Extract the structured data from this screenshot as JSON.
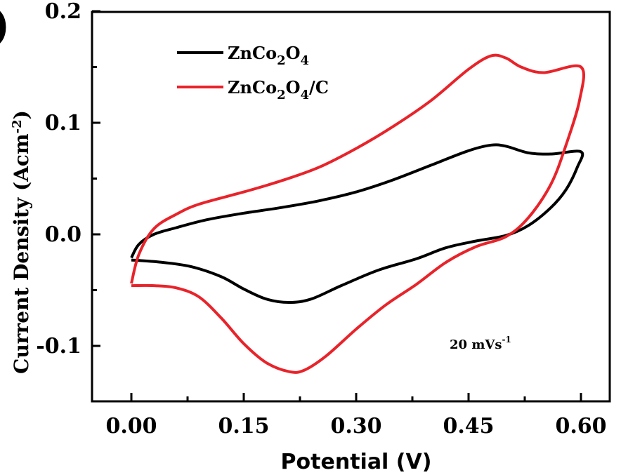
{
  "chart_data": {
    "type": "line",
    "panel_label": ")",
    "xlabel": "Potential (V)",
    "ylabel": "Current Density (Acm",
    "ylabel_sup": "-2",
    "ylabel_close": ")",
    "xlim": [
      0.0,
      0.6
    ],
    "ylim": [
      -0.15,
      0.2
    ],
    "xticks": [
      {
        "value": 0.0,
        "label": "0.00"
      },
      {
        "value": 0.15,
        "label": "0.15"
      },
      {
        "value": 0.3,
        "label": "0.30"
      },
      {
        "value": 0.45,
        "label": "0.45"
      },
      {
        "value": 0.6,
        "label": "0.60"
      }
    ],
    "yticks": [
      {
        "value": 0.2,
        "label": "0.2"
      },
      {
        "value": 0.1,
        "label": "0.1"
      },
      {
        "value": 0.0,
        "label": "0.0"
      },
      {
        "value": -0.1,
        "label": "-0.1"
      }
    ],
    "annotation": {
      "text": "20 mVs",
      "sup": "-1"
    },
    "legend_position": "top-left",
    "series": [
      {
        "name": "ZnCo2O4",
        "legend_main": "ZnCo",
        "legend_sub1": "2",
        "legend_mid": "O",
        "legend_sub2": "4",
        "legend_tail": "",
        "color": "#000000",
        "points": [
          [
            0.0,
            -0.021
          ],
          [
            0.01,
            -0.009
          ],
          [
            0.03,
            0.0
          ],
          [
            0.06,
            0.006
          ],
          [
            0.1,
            0.013
          ],
          [
            0.15,
            0.019
          ],
          [
            0.2,
            0.024
          ],
          [
            0.25,
            0.03
          ],
          [
            0.3,
            0.038
          ],
          [
            0.35,
            0.049
          ],
          [
            0.4,
            0.062
          ],
          [
            0.45,
            0.075
          ],
          [
            0.48,
            0.08
          ],
          [
            0.5,
            0.079
          ],
          [
            0.53,
            0.073
          ],
          [
            0.56,
            0.072
          ],
          [
            0.6,
            0.074
          ],
          [
            0.595,
            0.06
          ],
          [
            0.58,
            0.04
          ],
          [
            0.56,
            0.024
          ],
          [
            0.53,
            0.008
          ],
          [
            0.5,
            -0.001
          ],
          [
            0.46,
            -0.006
          ],
          [
            0.42,
            -0.012
          ],
          [
            0.38,
            -0.022
          ],
          [
            0.33,
            -0.032
          ],
          [
            0.28,
            -0.046
          ],
          [
            0.24,
            -0.058
          ],
          [
            0.21,
            -0.061
          ],
          [
            0.18,
            -0.058
          ],
          [
            0.15,
            -0.049
          ],
          [
            0.12,
            -0.038
          ],
          [
            0.08,
            -0.029
          ],
          [
            0.04,
            -0.025
          ],
          [
            0.0,
            -0.023
          ]
        ]
      },
      {
        "name": "ZnCo2O4/C",
        "legend_main": "ZnCo",
        "legend_sub1": "2",
        "legend_mid": "O",
        "legend_sub2": "4",
        "legend_tail": "/C",
        "color": "#e8232a",
        "points": [
          [
            0.0,
            -0.044
          ],
          [
            0.01,
            -0.018
          ],
          [
            0.03,
            0.005
          ],
          [
            0.06,
            0.018
          ],
          [
            0.09,
            0.027
          ],
          [
            0.15,
            0.038
          ],
          [
            0.2,
            0.048
          ],
          [
            0.25,
            0.06
          ],
          [
            0.3,
            0.077
          ],
          [
            0.35,
            0.097
          ],
          [
            0.4,
            0.12
          ],
          [
            0.45,
            0.148
          ],
          [
            0.48,
            0.16
          ],
          [
            0.5,
            0.158
          ],
          [
            0.52,
            0.15
          ],
          [
            0.55,
            0.145
          ],
          [
            0.6,
            0.15
          ],
          [
            0.598,
            0.12
          ],
          [
            0.58,
            0.08
          ],
          [
            0.56,
            0.045
          ],
          [
            0.53,
            0.015
          ],
          [
            0.5,
            -0.002
          ],
          [
            0.46,
            -0.011
          ],
          [
            0.42,
            -0.025
          ],
          [
            0.38,
            -0.045
          ],
          [
            0.34,
            -0.063
          ],
          [
            0.3,
            -0.085
          ],
          [
            0.26,
            -0.109
          ],
          [
            0.23,
            -0.122
          ],
          [
            0.21,
            -0.123
          ],
          [
            0.18,
            -0.115
          ],
          [
            0.15,
            -0.098
          ],
          [
            0.12,
            -0.075
          ],
          [
            0.09,
            -0.056
          ],
          [
            0.06,
            -0.048
          ],
          [
            0.03,
            -0.046
          ],
          [
            0.0,
            -0.046
          ]
        ]
      }
    ]
  }
}
